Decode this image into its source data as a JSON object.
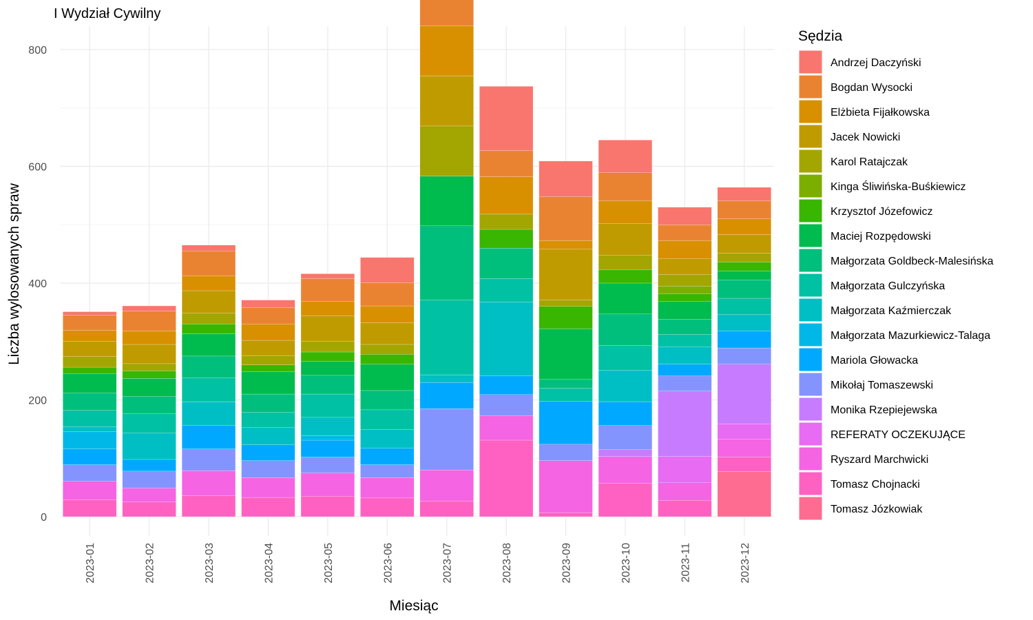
{
  "chart_data": {
    "type": "bar",
    "stacked": true,
    "title": "I Wydział Cywilny",
    "xlabel": "Miesiąc",
    "ylabel": "Liczba wylosowanych spraw",
    "ylim": [
      -33,
      840
    ],
    "yticks": [
      0,
      200,
      400,
      600,
      800
    ],
    "grid": true,
    "legend_title": "Sędzia",
    "legend_position": "right",
    "categories": [
      "2023-01",
      "2023-02",
      "2023-03",
      "2023-04",
      "2023-05",
      "2023-06",
      "2023-07",
      "2023-08",
      "2023-09",
      "2023-10",
      "2023-11",
      "2023-12"
    ],
    "series": [
      {
        "name": "Andrzej Daczyński",
        "color": "#F8766D",
        "values": [
          6,
          9,
          10,
          13,
          8,
          43,
          4,
          110,
          61,
          56,
          30,
          23
        ]
      },
      {
        "name": "Bogdan Wysocki",
        "color": "#EA8331",
        "values": [
          26,
          34,
          43,
          28,
          39,
          40,
          58,
          45,
          75,
          48,
          27,
          31
        ]
      },
      {
        "name": "Elżbieta Fijałkowska",
        "color": "#D89000",
        "values": [
          19,
          23,
          25,
          28,
          25,
          29,
          86,
          64,
          15,
          39,
          31,
          27
        ]
      },
      {
        "name": "Jacek Nowicki",
        "color": "#C09B00",
        "values": [
          26,
          33,
          38,
          26,
          44,
          37,
          86,
          0,
          87,
          54,
          27,
          32
        ]
      },
      {
        "name": "Karol Ratajczak",
        "color": "#A3A500",
        "values": [
          18,
          12,
          19,
          16,
          18,
          17,
          86,
          26,
          11,
          25,
          20,
          15
        ]
      },
      {
        "name": "Kinga Śliwińska-Buśkiewicz",
        "color": "#7CAE00",
        "values": [
          0,
          0,
          0,
          0,
          0,
          0,
          0,
          0,
          0,
          0,
          13,
          0
        ]
      },
      {
        "name": "Krzysztof Józefowicz",
        "color": "#39B600",
        "values": [
          11,
          13,
          17,
          12,
          16,
          17,
          0,
          32,
          38,
          23,
          13,
          15
        ]
      },
      {
        "name": "Maciej Rozpędowski",
        "color": "#00BB4E",
        "values": [
          33,
          31,
          38,
          38,
          24,
          45,
          85,
          0,
          87,
          53,
          31,
          16
        ]
      },
      {
        "name": "Małgorzata Goldbeck-Malesińska",
        "color": "#00BF7D",
        "values": [
          30,
          30,
          37,
          31,
          32,
          33,
          127,
          52,
          15,
          54,
          26,
          31
        ]
      },
      {
        "name": "Małgorzata Gulczyńska",
        "color": "#00C1A3",
        "values": [
          28,
          33,
          41,
          26,
          40,
          34,
          128,
          40,
          22,
          42,
          21,
          28
        ]
      },
      {
        "name": "Małgorzata Kaźmierczak",
        "color": "#00BFC4",
        "values": [
          8,
          45,
          41,
          30,
          31,
          32,
          13,
          127,
          0,
          54,
          30,
          28
        ]
      },
      {
        "name": "Małgorzata Mazurkiewicz-Talaga",
        "color": "#00B8E7",
        "values": [
          30,
          0,
          0,
          0,
          8,
          0,
          0,
          0,
          0,
          0,
          0,
          0
        ]
      },
      {
        "name": "Mariola Głowacka",
        "color": "#00A9FF",
        "values": [
          27,
          20,
          40,
          27,
          29,
          28,
          45,
          32,
          74,
          41,
          20,
          29
        ]
      },
      {
        "name": "Mikołaj Tomaszewski",
        "color": "#8494FF",
        "values": [
          28,
          29,
          37,
          29,
          27,
          22,
          105,
          36,
          28,
          41,
          26,
          28
        ]
      },
      {
        "name": "Monika Rzepiejewska",
        "color": "#C77CFF",
        "values": [
          0,
          0,
          0,
          0,
          0,
          0,
          0,
          0,
          0,
          12,
          112,
          102
        ]
      },
      {
        "name": "REFERATY OCZEKUJĄCE",
        "color": "#E76BF3",
        "values": [
          0,
          0,
          0,
          0,
          0,
          0,
          0,
          0,
          0,
          0,
          45,
          26
        ]
      },
      {
        "name": "Ryszard Marchwicki",
        "color": "#F564E3",
        "values": [
          32,
          24,
          43,
          34,
          40,
          35,
          53,
          42,
          89,
          46,
          30,
          31
        ]
      },
      {
        "name": "Tomasz Chojnacki",
        "color": "#FF61C3",
        "values": [
          29,
          25,
          36,
          33,
          35,
          32,
          27,
          131,
          7,
          57,
          28,
          25
        ]
      },
      {
        "name": "Tomasz Józkowiak",
        "color": "#FF6C91",
        "values": [
          0,
          0,
          0,
          0,
          0,
          0,
          0,
          0,
          0,
          0,
          0,
          77
        ]
      }
    ]
  }
}
